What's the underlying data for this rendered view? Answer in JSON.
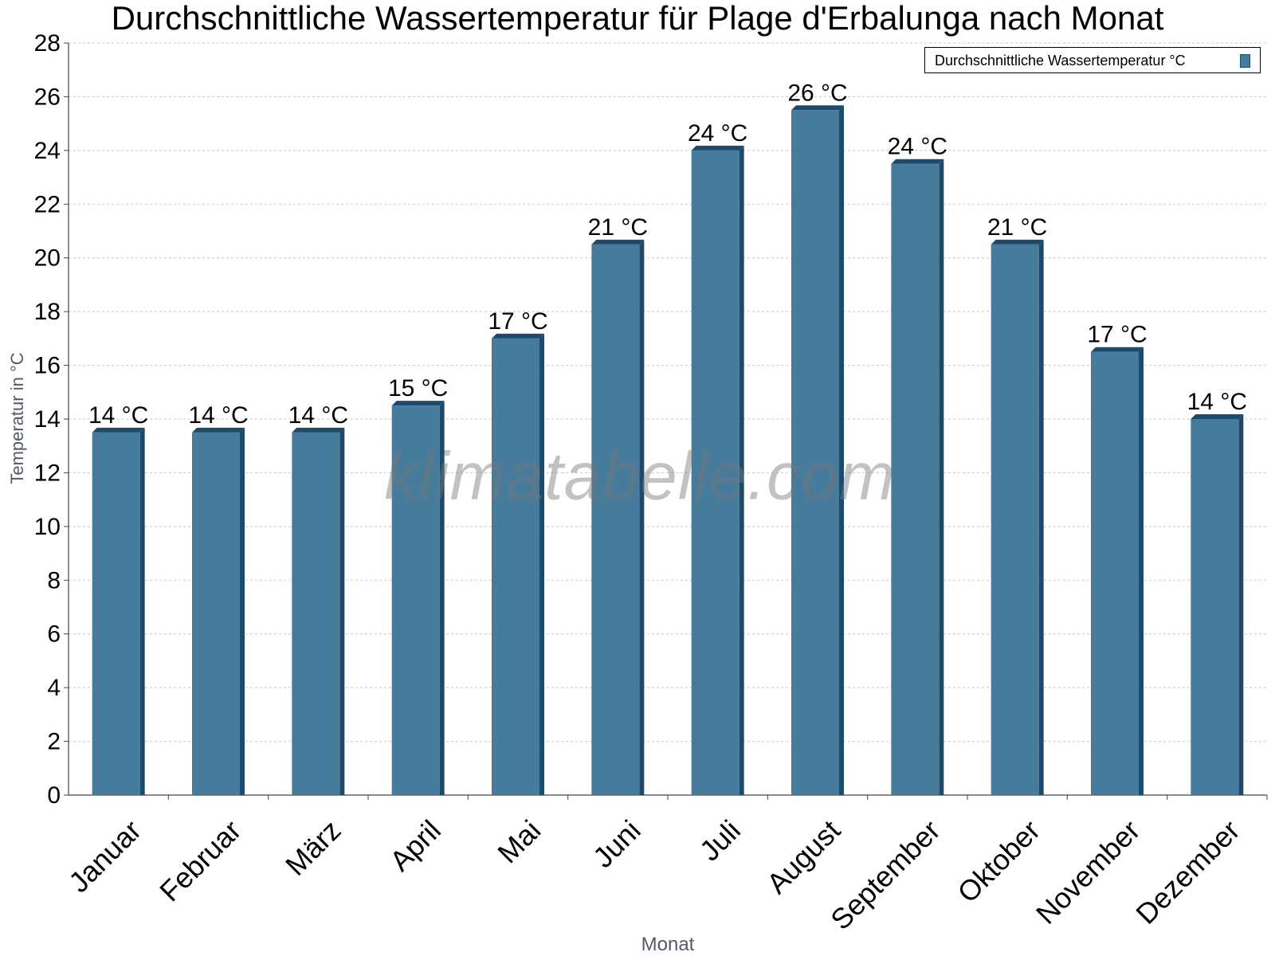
{
  "chart_data": {
    "type": "bar",
    "title": "Durchschnittliche Wassertemperatur für Plage d'Erbalunga nach Monat",
    "xlabel": "Monat",
    "ylabel": "Temperatur in °C",
    "ylim": [
      0,
      28
    ],
    "yticks": [
      "0",
      "2",
      "4",
      "6",
      "8",
      "10",
      "12",
      "14",
      "16",
      "18",
      "20",
      "22",
      "24",
      "26",
      "28"
    ],
    "grid": true,
    "legend_position": "top-right",
    "categories": [
      "Januar",
      "Februar",
      "März",
      "April",
      "Mai",
      "Juni",
      "Juli",
      "August",
      "September",
      "Oktober",
      "November",
      "Dezember"
    ],
    "series": [
      {
        "name": "Durchschnittliche Wassertemperatur °C",
        "color": "#467b9c",
        "values": [
          13.5,
          13.5,
          13.5,
          14.5,
          17.0,
          20.5,
          24.0,
          25.5,
          23.5,
          20.5,
          16.5,
          14.0
        ],
        "labels": [
          "14 °C",
          "14 °C",
          "14 °C",
          "15 °C",
          "17 °C",
          "21 °C",
          "24 °C",
          "26 °C",
          "24 °C",
          "21 °C",
          "17 °C",
          "14 °C"
        ]
      }
    ]
  },
  "watermark": "klimatabelle.com"
}
